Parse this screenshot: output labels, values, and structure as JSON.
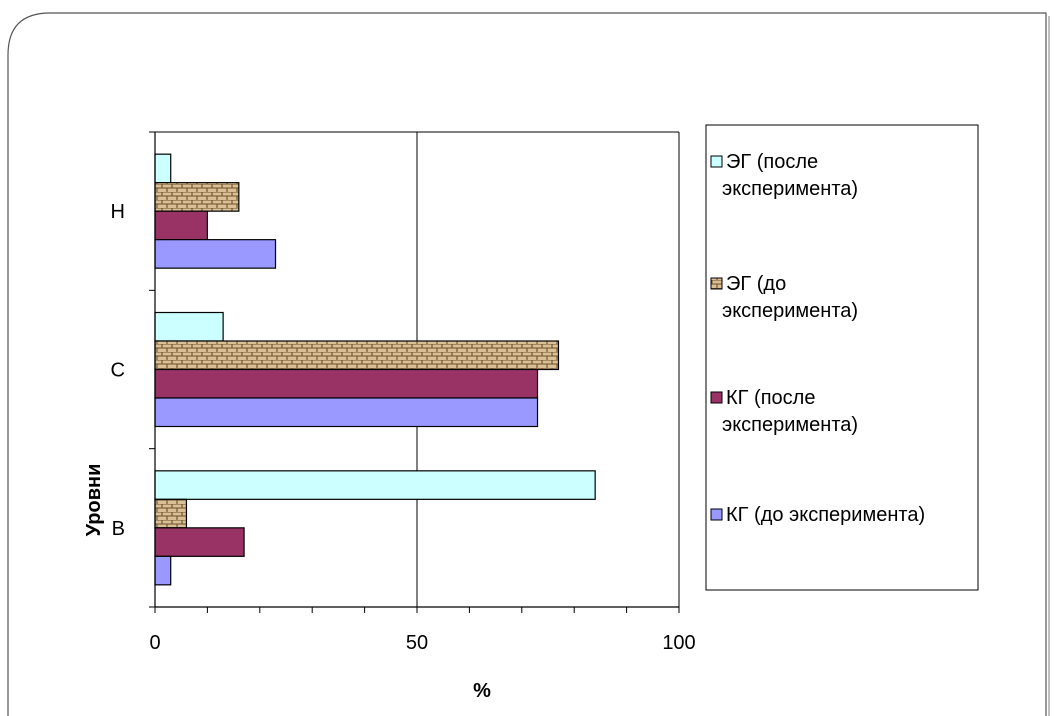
{
  "chart_data": {
    "type": "bar",
    "orientation": "horizontal",
    "categories": [
      "Н",
      "С",
      "В"
    ],
    "series": [
      {
        "name": "ЭГ (после эксперимента)",
        "legend_lines": [
          "ЭГ (после",
          "эксперимента)"
        ],
        "color": "#ccffff",
        "pattern": "solid",
        "values": [
          3,
          13,
          84
        ]
      },
      {
        "name": "ЭГ (до эксперимента)",
        "legend_lines": [
          "ЭГ (до",
          "эксперимента)"
        ],
        "color": "#d2b48c",
        "pattern": "brick",
        "values": [
          16,
          77,
          6
        ]
      },
      {
        "name": "КГ (после эксперимента)",
        "legend_lines": [
          "КГ (после",
          "эксперимента)"
        ],
        "color": "#993366",
        "pattern": "solid",
        "values": [
          10,
          73,
          17
        ]
      },
      {
        "name": "КГ (до эксперимента)",
        "legend_lines": [
          "КГ (до эксперимента)"
        ],
        "color": "#9999ff",
        "pattern": "solid",
        "values": [
          23,
          73,
          3
        ]
      }
    ],
    "xlabel": "%",
    "ylabel": "Уровни",
    "xlim": [
      0,
      100
    ],
    "x_ticks": [
      0,
      50,
      100
    ],
    "x_gridlines": [
      50
    ],
    "legend": "right"
  }
}
